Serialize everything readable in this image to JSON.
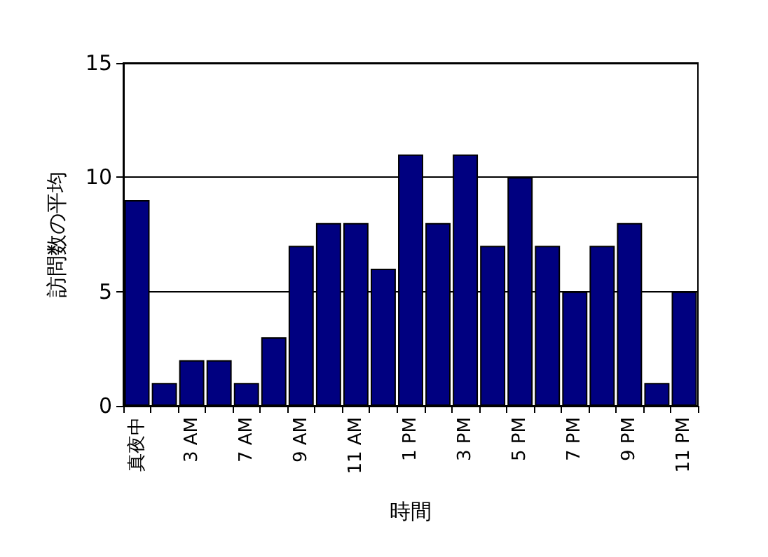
{
  "chart_data": {
    "type": "bar",
    "xlabel": "時間",
    "ylabel": "訪問数の平均",
    "categories": [
      "真夜中",
      null,
      "3 AM",
      null,
      "7 AM",
      null,
      "9 AM",
      null,
      "11 AM",
      null,
      "1 PM",
      null,
      "3 PM",
      null,
      "5 PM",
      null,
      "7 PM",
      null,
      "9 PM",
      null,
      "11 PM"
    ],
    "values": [
      9,
      1,
      2,
      2,
      1,
      3,
      7,
      8,
      8,
      6,
      11,
      8,
      11,
      7,
      10,
      7,
      5,
      7,
      8,
      1,
      5
    ],
    "color": "#000080",
    "ylim": [
      0,
      15
    ],
    "yticks": [
      0,
      5,
      10,
      15
    ],
    "grid": "y"
  }
}
